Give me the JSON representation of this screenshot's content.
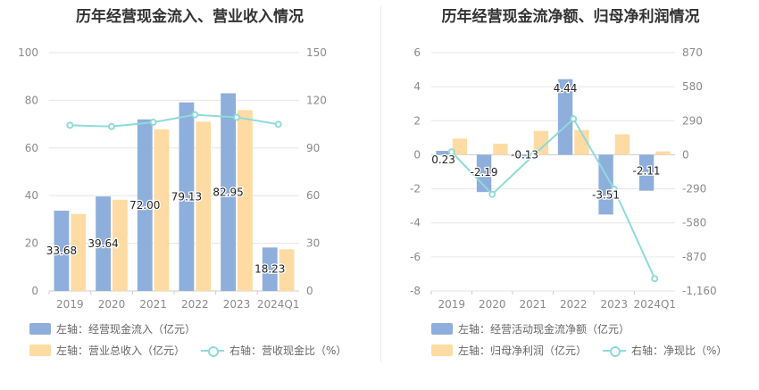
{
  "colors": {
    "bar_primary": "#8eaedb",
    "bar_secondary": "#fedba3",
    "line": "#8fdada",
    "grid": "#e6e6e6",
    "axis_text": "#8a8a8a"
  },
  "chart_data": [
    {
      "type": "bar",
      "title": "历年经营现金流入、营业收入情况",
      "categories": [
        "2019",
        "2020",
        "2021",
        "2022",
        "2023",
        "2024Q1"
      ],
      "left_axis": {
        "ylim": [
          0,
          100
        ],
        "ticks": [
          "0",
          "20",
          "40",
          "60",
          "80",
          "100"
        ]
      },
      "right_axis": {
        "ylim": [
          0,
          150
        ],
        "ticks": [
          "0",
          "30",
          "60",
          "90",
          "120",
          "150"
        ]
      },
      "series": [
        {
          "name": "左轴：经营现金流入（亿元）",
          "axis": "left",
          "kind": "bar",
          "values": [
            33.68,
            39.64,
            72.0,
            79.13,
            82.95,
            18.23
          ],
          "labels": [
            "33.68",
            "39.64",
            "72.00",
            "79.13",
            "82.95",
            "18.23"
          ]
        },
        {
          "name": "左轴：营业总收入（亿元）",
          "axis": "left",
          "kind": "bar",
          "values": [
            32.3,
            38.3,
            67.8,
            71.0,
            75.9,
            17.5
          ]
        },
        {
          "name": "右轴：营收现金比（%）",
          "axis": "right",
          "kind": "line",
          "values": [
            104.3,
            103.5,
            106.2,
            110.9,
            109.3,
            104.9
          ]
        }
      ],
      "legend_position": "bottom-left",
      "grid": true
    },
    {
      "type": "bar",
      "title": "历年经营现金流净额、归母净利润情况",
      "categories": [
        "2019",
        "2020",
        "2021",
        "2022",
        "2023",
        "2024Q1"
      ],
      "left_axis": {
        "ylim": [
          -8,
          6
        ],
        "ticks": [
          "-8",
          "-6",
          "-4",
          "-2",
          "0",
          "2",
          "4",
          "6"
        ]
      },
      "right_axis": {
        "ylim": [
          -1160,
          870
        ],
        "ticks": [
          "-1,160",
          "-870",
          "-580",
          "-290",
          "0",
          "290",
          "580",
          "870"
        ]
      },
      "series": [
        {
          "name": "左轴：经营活动现金流净额（亿元）",
          "axis": "left",
          "kind": "bar",
          "values": [
            0.23,
            -2.19,
            -0.13,
            4.44,
            -3.51,
            -2.11
          ],
          "labels": [
            "0.23",
            "-2.19",
            "-0.13",
            "4.44",
            "-3.51",
            "-2.11"
          ]
        },
        {
          "name": "左轴：归母净利润（亿元）",
          "axis": "left",
          "kind": "bar",
          "values": [
            0.95,
            0.65,
            1.4,
            1.45,
            1.2,
            0.2
          ]
        },
        {
          "name": "右轴：净现比（%）",
          "axis": "right",
          "kind": "line",
          "values": [
            24,
            -337,
            -9,
            306,
            -292,
            -1055
          ]
        }
      ],
      "legend_position": "bottom-left",
      "grid": true
    }
  ]
}
